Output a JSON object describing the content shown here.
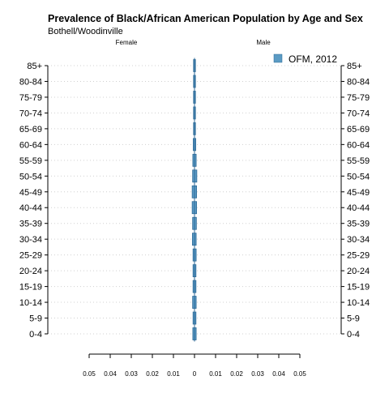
{
  "chart_data": {
    "type": "bar",
    "orientation": "horizontal",
    "title": "Prevalence of Black/African American Population by Age and Sex",
    "subtitle": "Bothell/Woodinville",
    "left_label": "Female",
    "right_label": "Male",
    "categories": [
      "0-4",
      "5-9",
      "10-14",
      "15-19",
      "20-24",
      "25-29",
      "30-34",
      "35-39",
      "40-44",
      "45-49",
      "50-54",
      "55-59",
      "60-64",
      "65-69",
      "70-74",
      "75-79",
      "80-84",
      "85+"
    ],
    "series": [
      {
        "name": "OFM, 2012",
        "color": "#5b9bc4",
        "edge_color": "#2e6a97",
        "female": [
          0.0008,
          0.0007,
          0.0009,
          0.0007,
          0.0007,
          0.0007,
          0.001,
          0.0009,
          0.0011,
          0.0011,
          0.0009,
          0.0008,
          0.0006,
          0.0004,
          0.0003,
          0.0003,
          0.0003,
          0.0002
        ],
        "male": [
          0.0008,
          0.0007,
          0.0008,
          0.0007,
          0.0007,
          0.0008,
          0.0008,
          0.0009,
          0.001,
          0.001,
          0.0011,
          0.0008,
          0.0006,
          0.0004,
          0.0003,
          0.0003,
          0.0003,
          0.0003
        ]
      }
    ],
    "x_ticks": [
      "0.05",
      "0.04",
      "0.03",
      "0.02",
      "0.01",
      "0",
      "0.01",
      "0.02",
      "0.03",
      "0.04",
      "0.05"
    ],
    "xlim": [
      -0.05,
      0.05
    ],
    "grid": "dotted horizontal",
    "legend_position": "top-right"
  }
}
